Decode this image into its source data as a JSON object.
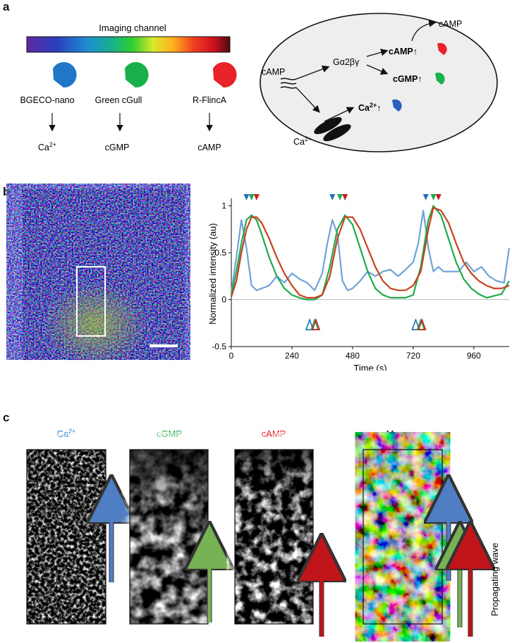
{
  "panels": {
    "a": "a",
    "b": "b",
    "c": "c"
  },
  "panel_a": {
    "colorbar_label": "Imaging channel",
    "sensors": [
      {
        "name": "BGECO-nano",
        "target": "Ca",
        "target_sup": "2+",
        "color": "#2176c7"
      },
      {
        "name": "Green cGull",
        "target": "cGMP",
        "target_sup": "",
        "color": "#18b04a"
      },
      {
        "name": "R-FlincA",
        "target": "cAMP",
        "target_sup": "",
        "color": "#e8232a"
      }
    ],
    "cell": {
      "camp_out": "cAMP",
      "camp_in": "cAMP",
      "g_protein": "Gα2βγ",
      "camp_up": "cAMP↑",
      "cgmp_up": "cGMP↑",
      "ca_up": "Ca",
      "ca_up_sup": "2+",
      "ca_up_arrow": "↑",
      "ca_out": "Ca",
      "ca_out_sup": "2+"
    }
  },
  "chart_data": {
    "type": "line",
    "xlabel": "Time (s)",
    "ylabel": "Normalized intensity (au)",
    "xlim": [
      0,
      1100
    ],
    "ylim": [
      -0.5,
      1.05
    ],
    "xticks": [
      0,
      240,
      480,
      720,
      960
    ],
    "yticks": [
      -0.5,
      0,
      0.5,
      1
    ],
    "series": [
      {
        "color": "#6fa3d6",
        "x": [
          0,
          20,
          40,
          60,
          80,
          100,
          120,
          150,
          180,
          210,
          240,
          270,
          300,
          330,
          360,
          380,
          400,
          420,
          440,
          460,
          480,
          510,
          540,
          570,
          600,
          630,
          660,
          690,
          720,
          740,
          760,
          780,
          800,
          820,
          840,
          870,
          900,
          930,
          960,
          990,
          1020,
          1050,
          1080,
          1100
        ],
        "y": [
          0.08,
          0.45,
          0.85,
          0.55,
          0.15,
          0.1,
          0.12,
          0.15,
          0.25,
          0.18,
          0.28,
          0.22,
          0.18,
          0.1,
          0.28,
          0.6,
          0.85,
          0.7,
          0.2,
          0.1,
          0.12,
          0.2,
          0.3,
          0.25,
          0.3,
          0.32,
          0.25,
          0.32,
          0.4,
          0.6,
          0.95,
          0.55,
          0.3,
          0.35,
          0.3,
          0.3,
          0.3,
          0.4,
          0.3,
          0.35,
          0.25,
          0.2,
          0.18,
          0.55
        ]
      },
      {
        "color": "#1eaa4a",
        "x": [
          0,
          20,
          40,
          60,
          80,
          100,
          120,
          150,
          180,
          210,
          240,
          270,
          300,
          330,
          360,
          390,
          420,
          450,
          480,
          510,
          540,
          570,
          600,
          630,
          660,
          690,
          720,
          750,
          780,
          800,
          830,
          860,
          890,
          920,
          950,
          980,
          1010,
          1040,
          1070,
          1100
        ],
        "y": [
          0.05,
          0.3,
          0.6,
          0.85,
          0.9,
          0.85,
          0.7,
          0.45,
          0.25,
          0.12,
          0.05,
          0.02,
          0.0,
          0.0,
          0.05,
          0.35,
          0.75,
          0.9,
          0.8,
          0.55,
          0.3,
          0.12,
          0.05,
          0.02,
          0.02,
          0.02,
          0.05,
          0.35,
          0.85,
          1.0,
          0.9,
          0.65,
          0.4,
          0.22,
          0.12,
          0.06,
          0.02,
          0.04,
          0.06,
          0.2
        ]
      },
      {
        "color": "#c8401e",
        "x": [
          0,
          20,
          40,
          60,
          80,
          100,
          120,
          150,
          180,
          210,
          240,
          270,
          300,
          330,
          360,
          390,
          420,
          450,
          480,
          510,
          540,
          570,
          600,
          630,
          660,
          690,
          720,
          750,
          780,
          800,
          830,
          860,
          890,
          920,
          950,
          980,
          1010,
          1040,
          1070,
          1100
        ],
        "y": [
          0.03,
          0.2,
          0.5,
          0.75,
          0.88,
          0.88,
          0.82,
          0.65,
          0.45,
          0.28,
          0.15,
          0.05,
          0.02,
          0.02,
          0.05,
          0.25,
          0.65,
          0.88,
          0.88,
          0.75,
          0.55,
          0.35,
          0.2,
          0.12,
          0.1,
          0.1,
          0.15,
          0.3,
          0.75,
          0.98,
          0.95,
          0.82,
          0.6,
          0.4,
          0.28,
          0.2,
          0.15,
          0.12,
          0.12,
          0.15
        ]
      }
    ],
    "peak_markers": [
      {
        "x": 60,
        "color": "#1f6fbf"
      },
      {
        "x": 80,
        "color": "#1eaa4a"
      },
      {
        "x": 100,
        "color": "#c81e1e"
      },
      {
        "x": 400,
        "color": "#1f6fbf"
      },
      {
        "x": 430,
        "color": "#1eaa4a"
      },
      {
        "x": 450,
        "color": "#c81e1e"
      },
      {
        "x": 770,
        "color": "#1f6fbf"
      },
      {
        "x": 800,
        "color": "#1eaa4a"
      },
      {
        "x": 820,
        "color": "#c81e1e"
      }
    ],
    "trough_markers": [
      {
        "x": 310,
        "color": "#1f6fbf"
      },
      {
        "x": 330,
        "color": "#1eaa4a"
      },
      {
        "x": 335,
        "color": "#c81e1e"
      },
      {
        "x": 730,
        "color": "#1f6fbf"
      },
      {
        "x": 750,
        "color": "#1eaa4a"
      },
      {
        "x": 755,
        "color": "#c81e1e"
      }
    ]
  },
  "panel_c": {
    "labels": [
      {
        "text": "Ca",
        "sup": "2+",
        "color": "#1f78c8"
      },
      {
        "text": "cGMP",
        "sup": "",
        "color": "#1eaa4a"
      },
      {
        "text": "cAMP",
        "sup": "",
        "color": "#e02020"
      },
      {
        "text": "Merge",
        "sup": "",
        "color": "#111111"
      }
    ],
    "wave_label": "Propagating wave",
    "arrow_colors": {
      "ca": "#4f7ec4",
      "cgmp": "#77b255",
      "camp": "#c0141a"
    }
  }
}
